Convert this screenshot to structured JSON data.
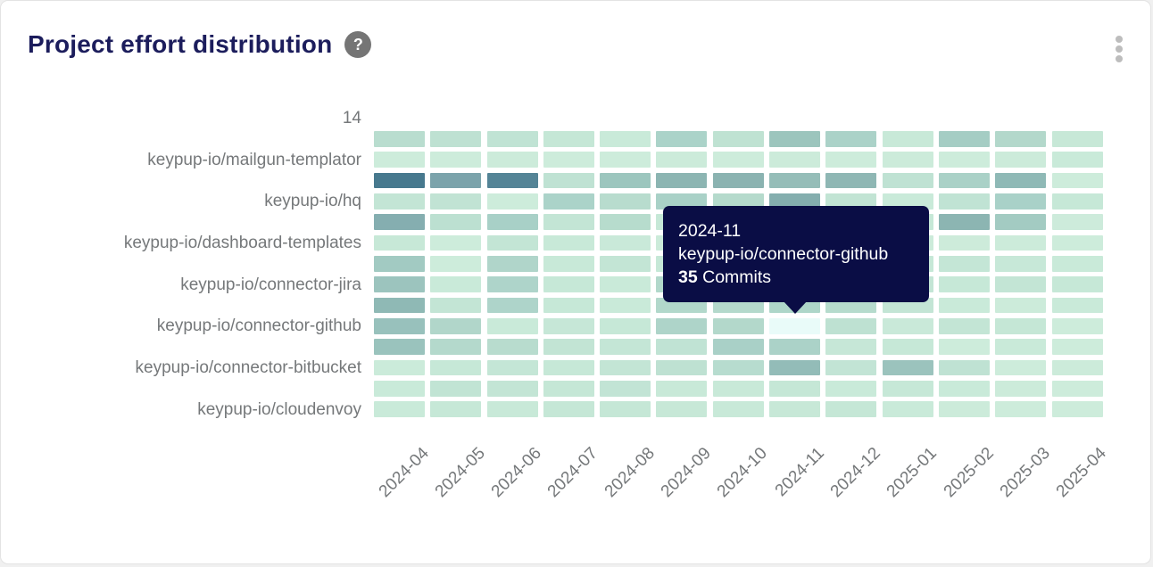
{
  "card": {
    "title": "Project effort distribution",
    "help_icon_glyph": "?",
    "title_color": "#1c1d5c"
  },
  "tooltip": {
    "date": "2024-11",
    "repo": "keypup-io/connector-github",
    "value": "35",
    "value_label": "Commits",
    "bg_color": "#0a0d45"
  },
  "chart_data": {
    "type": "heatmap",
    "title": "Project effort distribution",
    "unit": "Commits",
    "legend_position": "none",
    "grid": "off",
    "x_labels": [
      "2024-04",
      "2024-05",
      "2024-06",
      "2024-07",
      "2024-08",
      "2024-09",
      "2024-10",
      "2024-11",
      "2024-12",
      "2025-01",
      "2025-02",
      "2025-03",
      "2025-04"
    ],
    "y_axis_labels": [
      {
        "row": 0,
        "label": "14"
      },
      {
        "row": 2,
        "label": "keypup-io/mailgun-templator"
      },
      {
        "row": 4,
        "label": "keypup-io/hq"
      },
      {
        "row": 6,
        "label": "keypup-io/dashboard-templates"
      },
      {
        "row": 8,
        "label": "keypup-io/connector-jira"
      },
      {
        "row": 10,
        "label": "keypup-io/connector-github"
      },
      {
        "row": 12,
        "label": "keypup-io/connector-bitbucket"
      },
      {
        "row": 14,
        "label": "keypup-io/cloudenvoy"
      }
    ],
    "color_scale": {
      "low": "#cdecdb",
      "high": "#47798e",
      "hover_highlight": "#e9fbf9"
    },
    "highlighted_cell": {
      "x": "2024-11",
      "row": 10,
      "col": 8,
      "repo": "keypup-io/connector-github",
      "value": 35,
      "color": "#e9fbf9"
    },
    "cells": [
      [
        "#b9ddcf",
        "#bee1d2",
        "#c0e3d4",
        "#c5e7d6",
        "#c9ead9",
        "#abd3c9",
        "#bfe2d2",
        "#9cc5bd",
        "#abd2c8",
        "#c8e9d8",
        "#a5cdc4",
        "#b3d8cb",
        "#c7e8d7"
      ],
      [
        "#cdecdb",
        "#cdecdb",
        "#ccebda",
        "#cdecdb",
        "#cdecdb",
        "#ccebda",
        "#cdecdb",
        "#ccebda",
        "#cdecdb",
        "#ccebda",
        "#cdecdb",
        "#ccebda",
        "#c9ead9"
      ],
      [
        "#47798e",
        "#7ba3ab",
        "#548496",
        "#bfe2d3",
        "#9cc6be",
        "#8cb5b2",
        "#8bb3b1",
        "#95bdb8",
        "#8fb7b4",
        "#bfe2d3",
        "#aad1c7",
        "#8fb9b6",
        "#cdecdb"
      ],
      [
        "#c3e5d5",
        "#c1e3d4",
        "#cdecdb",
        "#abd3c9",
        "#b8dcce",
        "#a9d1c7",
        "#b5dacc",
        "#84aeae",
        "#c2e4d4",
        "#c9ead9",
        "#c0e3d4",
        "#a9d1c8",
        "#c6e8d7"
      ],
      [
        "#85aeb0",
        "#bce0d1",
        "#a8d0c7",
        "#c3e5d5",
        "#b7dccd",
        "#c6e8d7",
        "#c6e8d7",
        "#c6e8d7",
        "#c6e8d7",
        "#c6e8d7",
        "#8cb5b2",
        "#a3cbc2",
        "#cdebdb"
      ],
      [
        "#c7e8d7",
        "#cdecdb",
        "#c3e5d5",
        "#c8e9d8",
        "#c9e9d9",
        "#ccebda",
        "#ccebda",
        "#ccebda",
        "#ccebda",
        "#ccebda",
        "#cdebda",
        "#ccebda",
        "#cdecdb"
      ],
      [
        "#a2cac2",
        "#cdecdb",
        "#b0d5ca",
        "#c8e9d8",
        "#c3e5d5",
        "#c6e8d7",
        "#c6e8d7",
        "#c6e8d7",
        "#c6e8d7",
        "#c6e8d7",
        "#c4e6d6",
        "#c7e8d8",
        "#c9ead9"
      ],
      [
        "#9cc4be",
        "#c9ead9",
        "#aed4ca",
        "#c6e8d7",
        "#c9ead9",
        "#b2d8cb",
        "#b4d9cc",
        "#b1d7ca",
        "#b6dbcd",
        "#c3e5d5",
        "#c6e8d7",
        "#c3e5d5",
        "#c6e8d7"
      ],
      [
        "#8fb9b5",
        "#c3e5d5",
        "#aed4ca",
        "#c6e8d7",
        "#c9ead9",
        "#b2d8cb",
        "#b4d9cc",
        "#aed6c9",
        "#b6dbcd",
        "#c3e5d5",
        "#c9ead9",
        "#ccebda",
        "#c9ead9"
      ],
      [
        "#98c1bc",
        "#b1d6ca",
        "#c9ead9",
        "#c6e7d7",
        "#c6e8d7",
        "#aed4c9",
        "#b3d8cb",
        "#e9fbf9",
        "#bee1d2",
        "#c9e9d9",
        "#c3e5d5",
        "#c5e7d6",
        "#cdecdb"
      ],
      [
        "#9ac3bd",
        "#b4d9cc",
        "#b8dcce",
        "#c2e4d4",
        "#c4e6d6",
        "#c0e3d4",
        "#a9d0c7",
        "#abd2c8",
        "#c6e7d7",
        "#c6e8d7",
        "#cdecdb",
        "#c9ead9",
        "#cdecdb"
      ],
      [
        "#cbebda",
        "#c6e8d7",
        "#c4e6d6",
        "#c6e8d7",
        "#c3e5d5",
        "#bee1d2",
        "#b7dccf",
        "#93bcb8",
        "#c2e4d5",
        "#9bc3bd",
        "#bfe2d3",
        "#cdecdb",
        "#ccebda"
      ],
      [
        "#c9ead9",
        "#c1e4d4",
        "#c3e5d5",
        "#c5e7d6",
        "#c2e4d5",
        "#c8e9d8",
        "#c8e9d8",
        "#c5e7d6",
        "#c9ead9",
        "#c6e8d7",
        "#c9ead9",
        "#ccebda",
        "#cdecdb"
      ],
      [
        "#c9ead9",
        "#c6e8d7",
        "#c8e9d8",
        "#c5e7d6",
        "#c5e7d6",
        "#c7e8d7",
        "#c8e9d8",
        "#c7e8d7",
        "#c5e7d6",
        "#c9ead9",
        "#ccebda",
        "#cdecdb",
        "#cdecdb"
      ]
    ]
  }
}
